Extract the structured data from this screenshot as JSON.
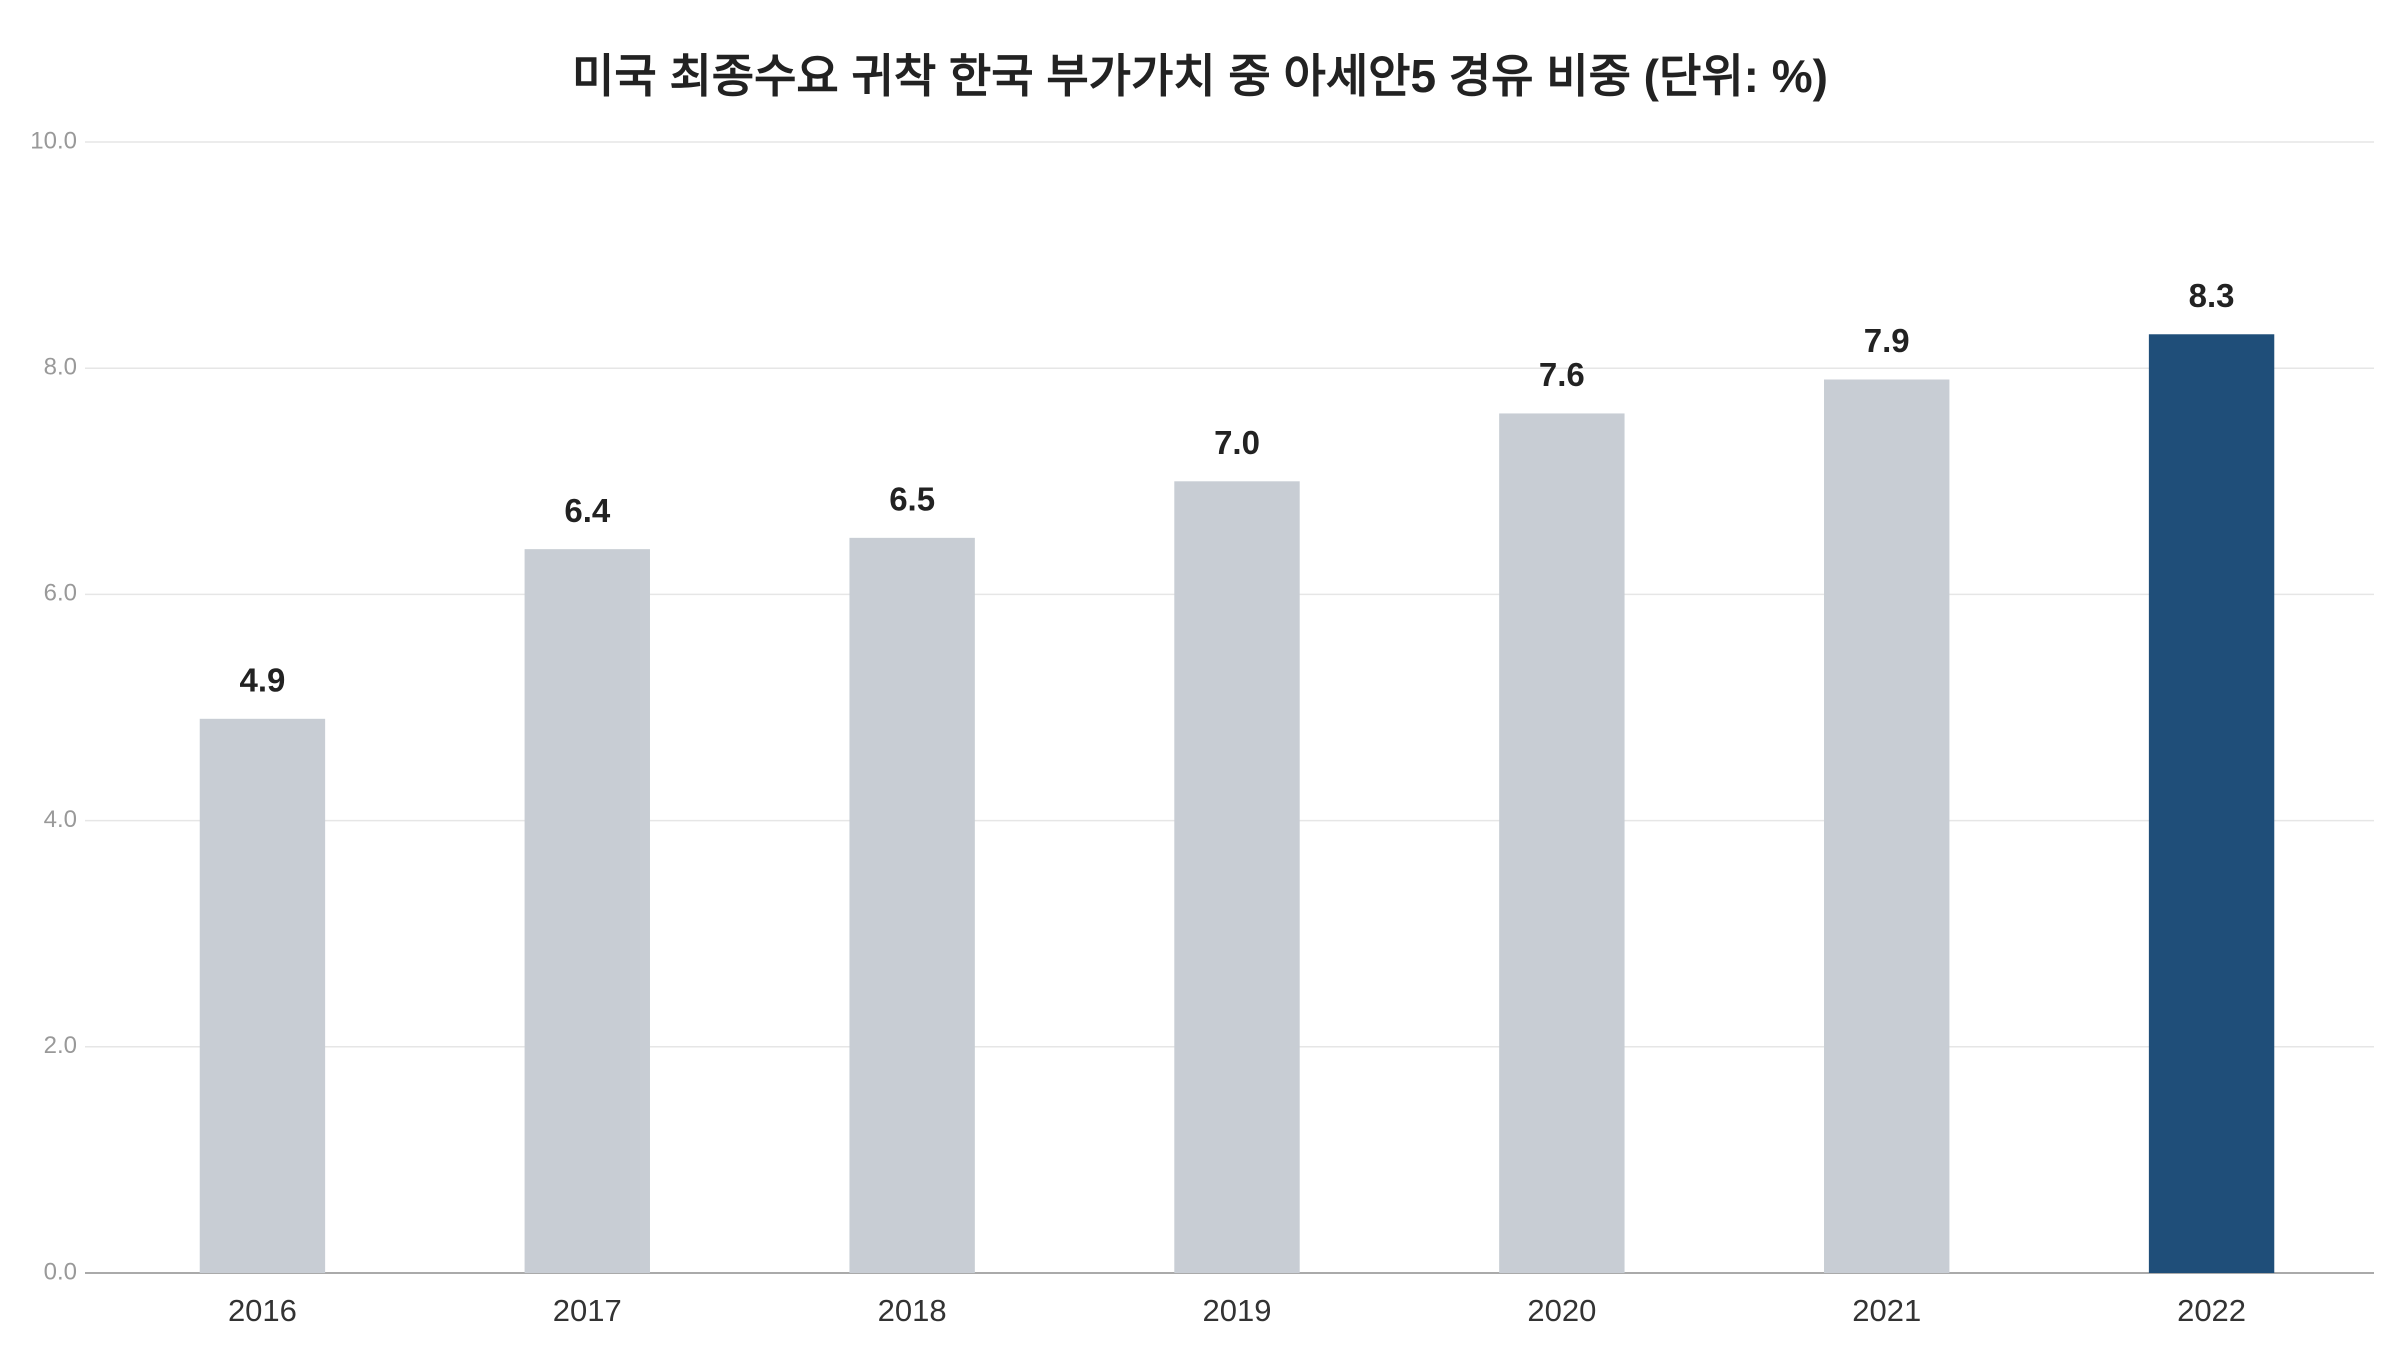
{
  "chart_data": {
    "type": "bar",
    "title": "미국 최종수요 귀착 한국 부가가치 중 아세안5 경유 비중 (단위: %)",
    "categories": [
      "2016",
      "2017",
      "2018",
      "2019",
      "2020",
      "2021",
      "2022"
    ],
    "values": [
      4.9,
      6.4,
      6.5,
      7.0,
      7.6,
      7.9,
      8.3
    ],
    "value_labels": [
      "4.9",
      "6.4",
      "6.5",
      "7.0",
      "7.6",
      "7.9",
      "8.3"
    ],
    "colors": [
      "#c8cdd4",
      "#c8cdd4",
      "#c8cdd4",
      "#c8cdd4",
      "#c8cdd4",
      "#c8cdd4",
      "#1f4e79"
    ],
    "ylim": [
      0,
      10
    ],
    "yticks": [
      {
        "value": 0,
        "label": "0.0"
      },
      {
        "value": 2,
        "label": "2.0"
      },
      {
        "value": 4,
        "label": "4.0"
      },
      {
        "value": 6,
        "label": "6.0"
      },
      {
        "value": 8,
        "label": "8.0"
      },
      {
        "value": 10,
        "label": "10.0"
      }
    ],
    "grid": true
  }
}
